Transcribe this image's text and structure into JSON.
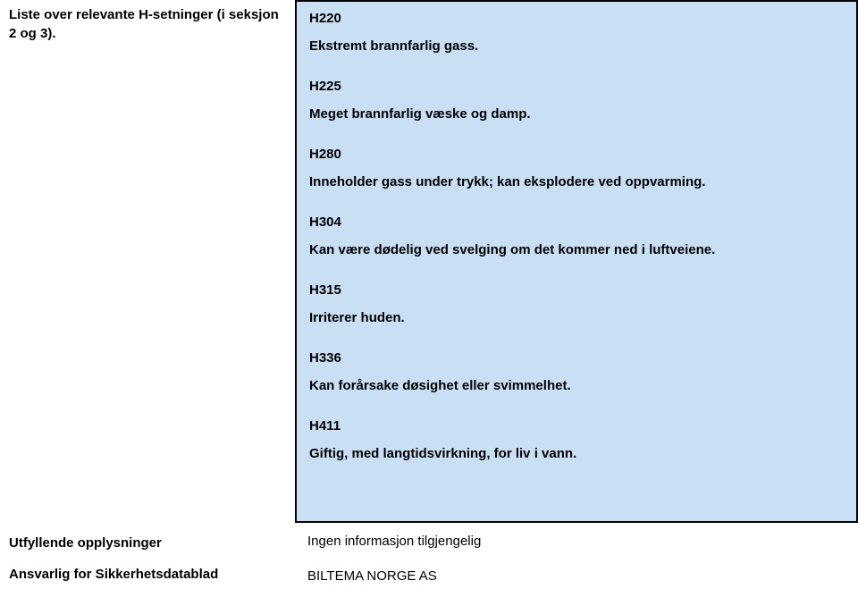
{
  "left": {
    "topLabel": "Liste over relevante H-setninger (i seksjon 2 og 3).",
    "supplLabel": "Utfyllende opplysninger",
    "responsibleLabel": "Ansvarlig for Sikkerhetsdatablad"
  },
  "hazards": [
    {
      "code": "H220",
      "text": "Ekstremt brannfarlig gass."
    },
    {
      "code": "H225",
      "text": "Meget brannfarlig væske og damp."
    },
    {
      "code": "H280",
      "text": "Inneholder gass under trykk; kan eksplodere ved oppvarming."
    },
    {
      "code": "H304",
      "text": "Kan være dødelig ved svelging om det kommer ned i luftveiene."
    },
    {
      "code": "H315",
      "text": "Irriterer huden."
    },
    {
      "code": "H336",
      "text": "Kan forårsake døsighet eller svimmelhet."
    },
    {
      "code": "H411",
      "text": "Giftig, med langtidsvirkning, for liv i vann."
    }
  ],
  "supplementaryInfo": "Ingen informasjon tilgjengelig",
  "responsible": "BILTEMA NORGE AS",
  "colors": {
    "boxBg": "#c8dff4",
    "boxBorder": "#000000",
    "pageBg": "#ffffff",
    "text": "#000000"
  },
  "typography": {
    "fontFamily": "Arial",
    "fontSizePt": 15,
    "fontWeightBold": 700
  }
}
